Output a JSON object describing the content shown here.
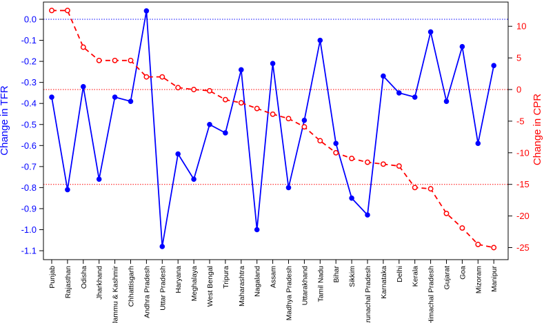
{
  "chart_data": {
    "type": "line",
    "categories": [
      "Punjab",
      "Rajasthan",
      "Odisha",
      "Jharkhand",
      "Jammu & Kashmir",
      "Chhattisgarh",
      "Andhra Pradesh",
      "Uttar Pradesh",
      "Haryana",
      "Meghalaya",
      "West Bengal",
      "Tripura",
      "Maharashtra",
      "Nagaland",
      "Assam",
      "Madhya Pradesh",
      "Uttarakhand",
      "Tamil Nadu",
      "Bihar",
      "Sikkim",
      "Arunachal Pradesh",
      "Karnataka",
      "Delhi",
      "Kerala",
      "Himachal Pradesh",
      "Gujarat",
      "Goa",
      "Mizoram",
      "Manipur"
    ],
    "series": [
      {
        "name": "",
        "axis": "left",
        "color": "#0000ff",
        "style": "solid line, filled circles",
        "values": [
          -0.37,
          -0.81,
          -0.32,
          -0.76,
          -0.37,
          -0.39,
          0.04,
          -1.08,
          -0.64,
          -0.76,
          -0.5,
          -0.54,
          -0.24,
          -1.0,
          -0.21,
          -0.8,
          -0.48,
          -0.1,
          -0.59,
          -0.85,
          -0.93,
          -0.27,
          -0.35,
          -0.37,
          -0.06,
          -0.39,
          -0.13,
          -0.59,
          -0.22
        ]
      },
      {
        "name": "",
        "axis": "right",
        "color": "#ff0000",
        "style": "dashed line, open circles",
        "values": [
          12.5,
          12.5,
          6.7,
          4.6,
          4.6,
          4.6,
          2.0,
          2.0,
          0.3,
          0.0,
          -0.2,
          -1.6,
          -2.1,
          -3.0,
          -3.9,
          -4.6,
          -5.9,
          -8.1,
          -10.0,
          -10.9,
          -11.5,
          -11.8,
          -12.1,
          -15.5,
          -15.7,
          -19.6,
          -21.9,
          -24.5,
          -25.0
        ]
      }
    ],
    "left_axis": {
      "label": "Change in TFR",
      "ylim": [
        -1.1,
        0.0
      ],
      "ticks": [
        "0.0",
        "-0.1",
        "-0.2",
        "-0.3",
        "-0.4",
        "-0.5",
        "-0.6",
        "-0.7",
        "-0.8",
        "-0.9",
        "-1.0",
        "-1.1"
      ],
      "color": "#0000ff"
    },
    "right_axis": {
      "label": "Change in CPR",
      "ylim": [
        -25,
        10
      ],
      "ticks": [
        "10",
        "5",
        "0",
        "-5",
        "-10",
        "-15",
        "-20",
        "-25"
      ],
      "color": "#ff0000"
    },
    "reference_lines": [
      {
        "axis": "left",
        "value": 0.0,
        "color": "#0000ff",
        "style": "dotted"
      },
      {
        "axis": "right",
        "value": 0.0,
        "color": "#ff0000",
        "style": "dotted"
      },
      {
        "axis": "right",
        "value": -15,
        "color": "#ff0000",
        "style": "dotted"
      }
    ],
    "grid": false,
    "legend": "none"
  }
}
